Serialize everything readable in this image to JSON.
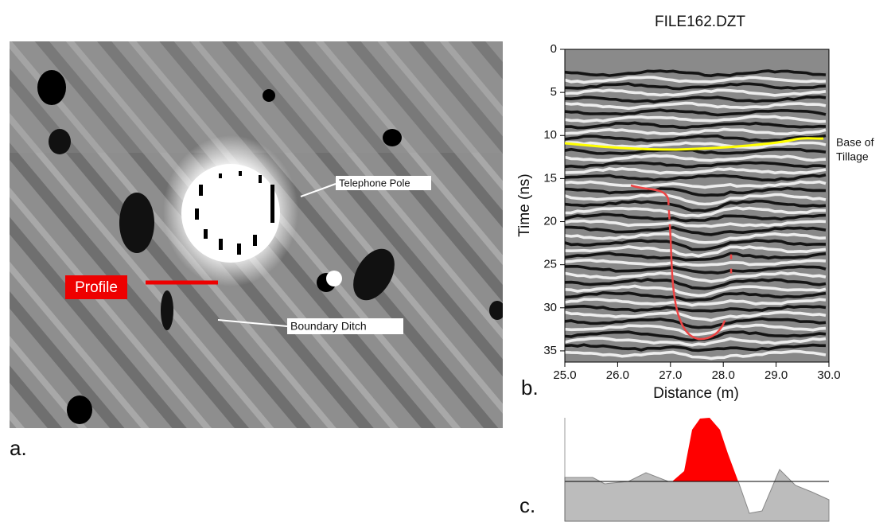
{
  "panel_a": {
    "label": "a.",
    "profile_label": "Profile",
    "pole_label": "Telephone Pole",
    "ditch_label": "Boundary Ditch"
  },
  "panel_b": {
    "label": "b.",
    "title": "FILE162.DZT",
    "xlabel": "Distance (m)",
    "ylabel": "Time (ns)",
    "annotation": [
      "Base of",
      "Tillage"
    ],
    "xlim": [
      25,
      30
    ],
    "ylim": [
      0,
      36.3
    ],
    "xticks": [
      {
        "value": 25,
        "label": "25.0"
      },
      {
        "value": 26,
        "label": "26.0"
      },
      {
        "value": 27,
        "label": "27.0"
      },
      {
        "value": 28,
        "label": "28.0"
      },
      {
        "value": 29,
        "label": "29.0"
      },
      {
        "value": 30,
        "label": "30.0"
      }
    ],
    "yticks": [
      0,
      5,
      10,
      15,
      20,
      25,
      30,
      35
    ]
  },
  "panel_c": {
    "label": "c."
  }
}
